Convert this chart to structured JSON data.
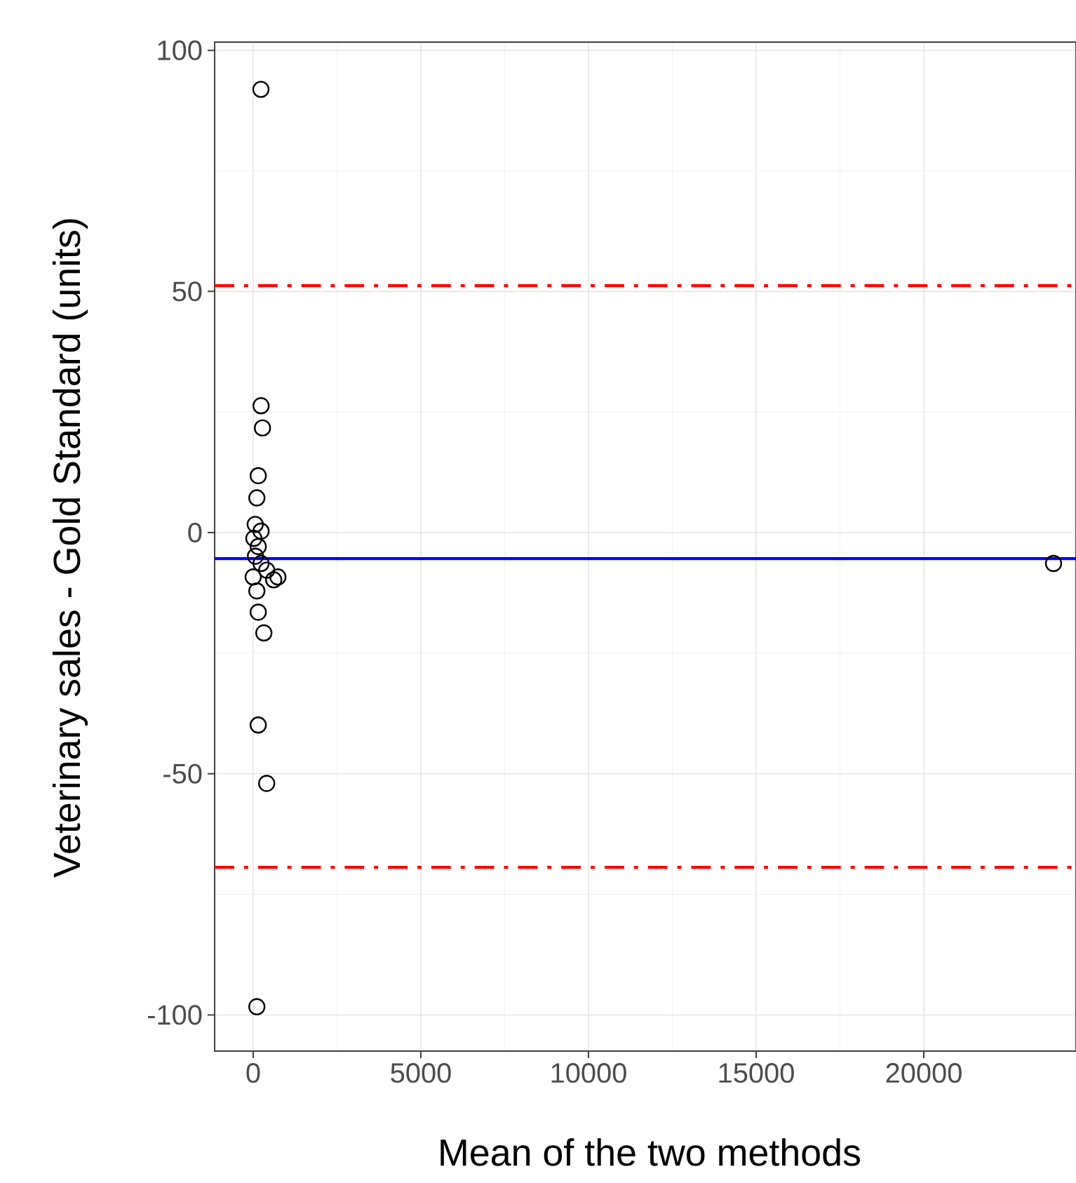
{
  "chart_data": {
    "type": "scatter",
    "xlabel": "Mean of the two methods",
    "ylabel": "Veterinary sales - Gold Standard (units)",
    "x": [
      230,
      234,
      276,
      150,
      109,
      60,
      234,
      20,
      150,
      67,
      234,
      402,
      0,
      611,
      736,
      109,
      150,
      318,
      150,
      402,
      109,
      23870
    ],
    "values": [
      91.9,
      26.3,
      21.7,
      11.8,
      7.2,
      1.7,
      0.3,
      -1.2,
      -2.9,
      -4.9,
      -6.4,
      -7.8,
      -9.2,
      -9.8,
      -9.2,
      -12.1,
      -16.5,
      -20.8,
      -39.9,
      -52,
      -98.3,
      -6.4
    ],
    "color": "#000000",
    "marker": "circle",
    "xlim": [
      -1150,
      24540
    ],
    "ylim": [
      -107.5,
      101.7
    ],
    "xticks": [
      0,
      5000,
      10000,
      15000,
      20000
    ],
    "yticks": [
      -100,
      -50,
      0,
      50,
      100
    ],
    "grid": true,
    "ref_lines": [
      {
        "axis": "y",
        "value": -5.4,
        "color": "#0000ff",
        "line_style": "solid"
      },
      {
        "axis": "y",
        "value": 51.2,
        "color": "#ff0000",
        "line_style": "dashdot"
      },
      {
        "axis": "y",
        "value": -69.4,
        "color": "#ff0000",
        "line_style": "dashdot"
      }
    ]
  }
}
